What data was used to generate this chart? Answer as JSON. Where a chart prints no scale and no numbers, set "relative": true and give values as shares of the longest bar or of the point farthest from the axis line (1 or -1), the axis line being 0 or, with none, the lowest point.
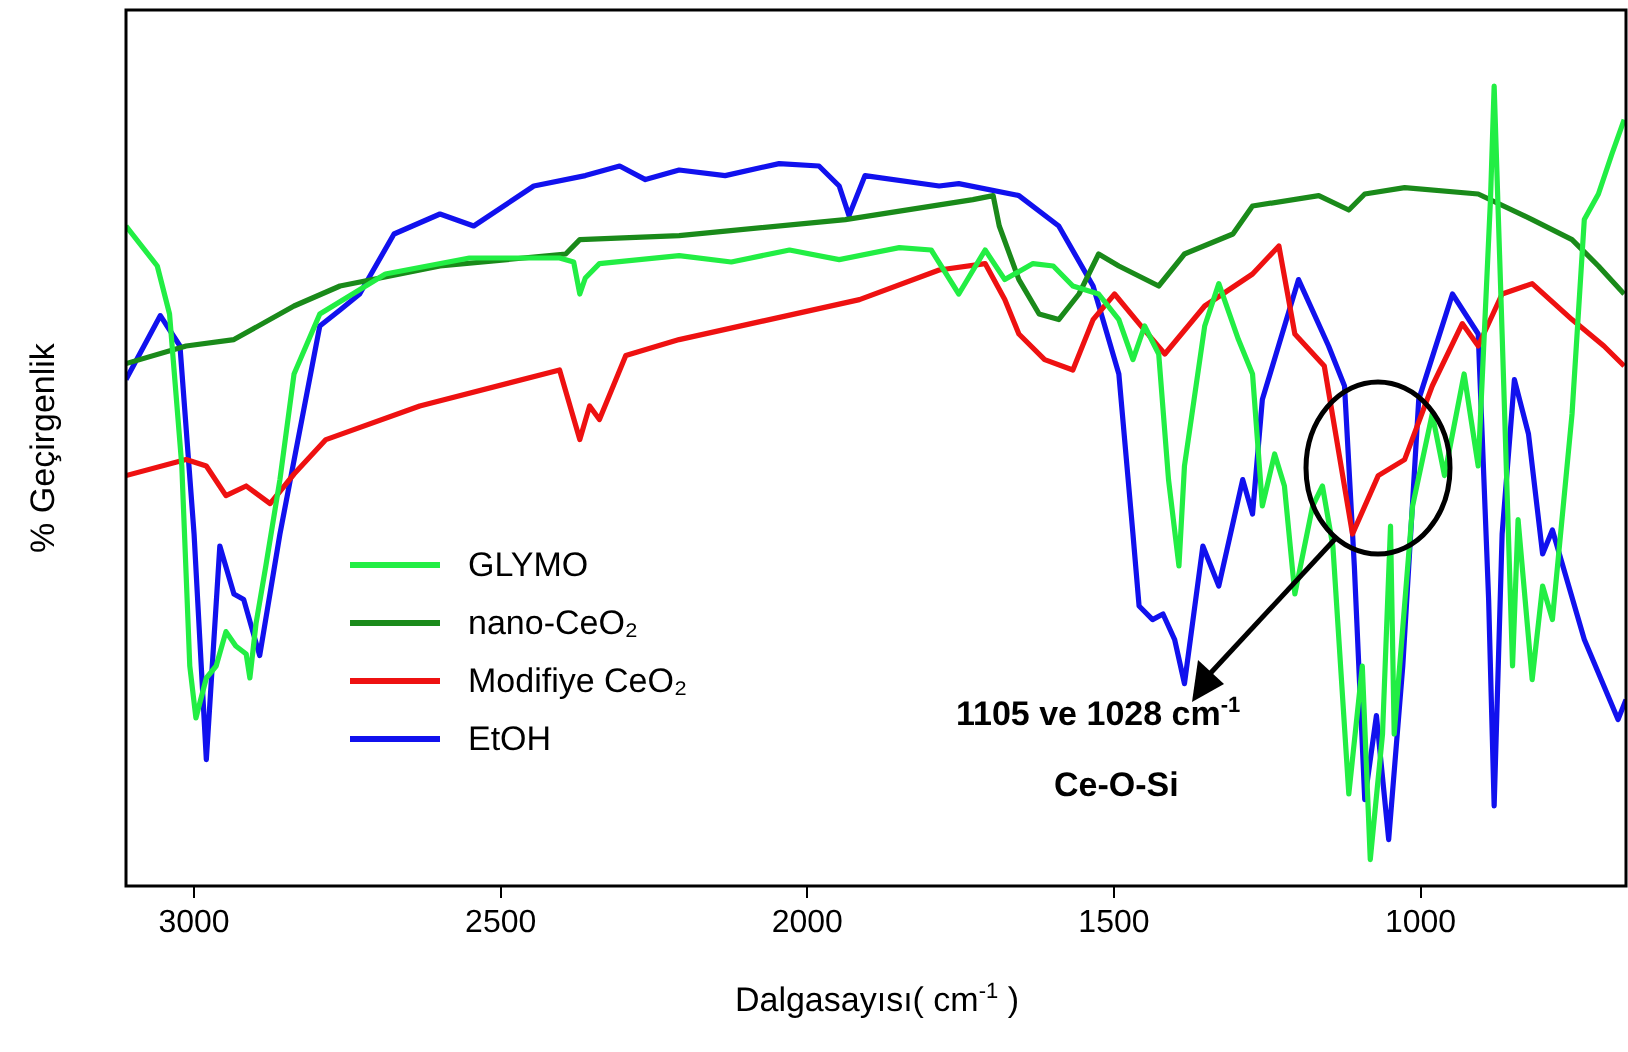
{
  "chart_data": {
    "type": "line",
    "relative": true,
    "xlabel": "Dalgasayısı( cm$^{-1}$ )",
    "ylabel": "% Geçirgenlik",
    "xlim": [
      3111,
      665
    ],
    "xticks": [
      3000,
      2500,
      2000,
      1500,
      1000
    ],
    "grid": false,
    "legend": "bottom left",
    "marker": "none",
    "line_style": "solid",
    "annotations": [
      "1105 ve 1028 cm$^{-1}$",
      "Ce-O-Si"
    ],
    "series": [
      {
        "name": "GLYMO",
        "color": "#22ee44",
        "x": [
          3111,
          3060,
          3040,
          3020,
          3007,
          2997,
          2980,
          2964,
          2948,
          2932,
          2915,
          2909,
          2899,
          2883,
          2860,
          2837,
          2795,
          2688,
          2551,
          2404,
          2381,
          2371,
          2362,
          2339,
          2209,
          2124,
          2029,
          1948,
          1850,
          1798,
          1753,
          1710,
          1678,
          1632,
          1599,
          1567,
          1525,
          1492,
          1469,
          1450,
          1427,
          1411,
          1394,
          1385,
          1352,
          1329,
          1297,
          1274,
          1258,
          1238,
          1222,
          1205,
          1176,
          1160,
          1143,
          1117,
          1095,
          1082,
          1062,
          1049,
          1043,
          1013,
          981,
          961,
          929,
          906,
          886,
          880,
          867,
          850,
          841,
          818,
          801,
          785,
          753,
          733,
          710,
          688,
          668
        ],
        "values": [
          0.825,
          0.775,
          0.715,
          0.525,
          0.275,
          0.21,
          0.26,
          0.275,
          0.318,
          0.3,
          0.29,
          0.26,
          0.328,
          0.4,
          0.508,
          0.64,
          0.715,
          0.765,
          0.785,
          0.785,
          0.78,
          0.74,
          0.76,
          0.778,
          0.788,
          0.78,
          0.795,
          0.783,
          0.798,
          0.795,
          0.74,
          0.795,
          0.758,
          0.778,
          0.775,
          0.75,
          0.74,
          0.708,
          0.658,
          0.7,
          0.665,
          0.508,
          0.4,
          0.525,
          0.7,
          0.753,
          0.683,
          0.64,
          0.475,
          0.54,
          0.5,
          0.365,
          0.475,
          0.5,
          0.425,
          0.115,
          0.275,
          0.033,
          0.19,
          0.45,
          0.19,
          0.475,
          0.59,
          0.513,
          0.64,
          0.525,
          0.858,
          1.0,
          0.69,
          0.275,
          0.458,
          0.258,
          0.375,
          0.333,
          0.59,
          0.833,
          0.865,
          0.915,
          0.958
        ]
      },
      {
        "name": "nano-CeO₂",
        "color": "#1a8a1a",
        "x": [
          3111,
          3013,
          2935,
          2837,
          2762,
          2599,
          2394,
          2371,
          2209,
          1938,
          1730,
          1697,
          1687,
          1655,
          1622,
          1590,
          1557,
          1525,
          1492,
          1427,
          1385,
          1306,
          1274,
          1166,
          1117,
          1091,
          1026,
          906,
          818,
          753,
          710,
          668
        ],
        "values": [
          0.653,
          0.675,
          0.683,
          0.725,
          0.75,
          0.775,
          0.79,
          0.808,
          0.813,
          0.833,
          0.858,
          0.863,
          0.825,
          0.758,
          0.715,
          0.708,
          0.74,
          0.79,
          0.775,
          0.75,
          0.79,
          0.815,
          0.85,
          0.863,
          0.845,
          0.865,
          0.873,
          0.865,
          0.833,
          0.808,
          0.775,
          0.74
        ]
      },
      {
        "name": "Modifiye CeO₂",
        "color": "#ee1111",
        "x": [
          3111,
          3013,
          2980,
          2948,
          2915,
          2876,
          2837,
          2785,
          2632,
          2404,
          2371,
          2355,
          2339,
          2296,
          2209,
          1915,
          1785,
          1710,
          1678,
          1655,
          1613,
          1567,
          1534,
          1499,
          1459,
          1417,
          1352,
          1274,
          1231,
          1205,
          1157,
          1111,
          1069,
          1026,
          981,
          932,
          906,
          867,
          818,
          753,
          701,
          668
        ],
        "values": [
          0.513,
          0.533,
          0.525,
          0.488,
          0.5,
          0.478,
          0.515,
          0.558,
          0.6,
          0.645,
          0.558,
          0.6,
          0.583,
          0.663,
          0.683,
          0.733,
          0.77,
          0.778,
          0.733,
          0.69,
          0.658,
          0.645,
          0.708,
          0.74,
          0.703,
          0.665,
          0.725,
          0.765,
          0.8,
          0.69,
          0.65,
          0.44,
          0.513,
          0.533,
          0.625,
          0.703,
          0.675,
          0.74,
          0.753,
          0.708,
          0.675,
          0.65
        ]
      },
      {
        "name": "EtOH",
        "color": "#1111ee",
        "x": [
          3111,
          3055,
          3023,
          3000,
          2980,
          2958,
          2935,
          2919,
          2893,
          2860,
          2795,
          2762,
          2730,
          2674,
          2599,
          2544,
          2446,
          2362,
          2306,
          2264,
          2209,
          2134,
          2046,
          1981,
          1948,
          1932,
          1906,
          1785,
          1753,
          1655,
          1590,
          1534,
          1492,
          1469,
          1459,
          1437,
          1420,
          1401,
          1385,
          1355,
          1329,
          1290,
          1274,
          1258,
          1199,
          1150,
          1124,
          1108,
          1091,
          1072,
          1052,
          1029,
          1003,
          948,
          906,
          889,
          880,
          867,
          847,
          824,
          801,
          785,
          733,
          678,
          665
        ],
        "values": [
          0.633,
          0.713,
          0.675,
          0.44,
          0.158,
          0.425,
          0.365,
          0.358,
          0.288,
          0.44,
          0.7,
          0.72,
          0.74,
          0.815,
          0.84,
          0.825,
          0.875,
          0.888,
          0.9,
          0.883,
          0.895,
          0.888,
          0.903,
          0.9,
          0.875,
          0.838,
          0.888,
          0.875,
          0.878,
          0.863,
          0.825,
          0.75,
          0.64,
          0.44,
          0.35,
          0.333,
          0.34,
          0.308,
          0.253,
          0.425,
          0.375,
          0.508,
          0.465,
          0.608,
          0.758,
          0.675,
          0.625,
          0.4,
          0.108,
          0.213,
          0.058,
          0.275,
          0.608,
          0.74,
          0.69,
          0.358,
          0.1,
          0.44,
          0.633,
          0.565,
          0.415,
          0.445,
          0.308,
          0.208,
          0.233
        ]
      }
    ]
  }
}
